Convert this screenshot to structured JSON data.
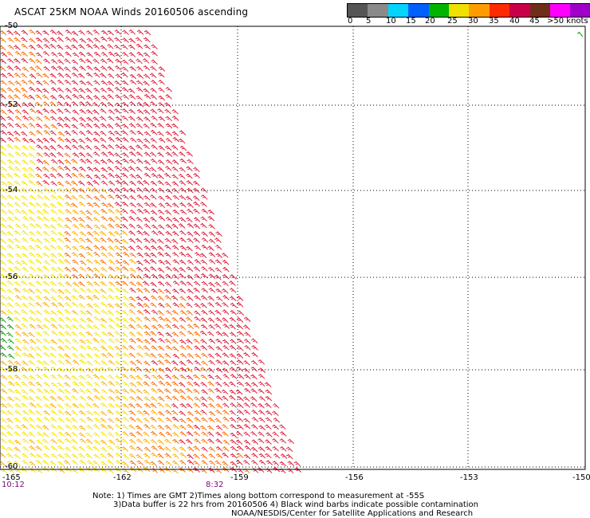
{
  "title": "ASCAT 25KM NOAA Winds 20160506 ascending",
  "legend": {
    "labels": [
      "0",
      "5",
      "10",
      "15",
      "20",
      "25",
      "30",
      "35",
      "40",
      "45",
      ">50 knots"
    ],
    "colors": [
      "#555555",
      "#8a8a8a",
      "#00d4ff",
      "#0060ff",
      "#00b400",
      "#f0e000",
      "#ff9c00",
      "#ff2a00",
      "#c8004a",
      "#6e2e1a",
      "#ff00ff",
      "#a000c8",
      "#400080"
    ]
  },
  "latitudes": [
    "-50",
    "-52",
    "-54",
    "-56",
    "-58",
    "-60"
  ],
  "longitudes": [
    "-165",
    "-162",
    "-159",
    "-156",
    "-153",
    "-150"
  ],
  "times": [
    "10:12",
    "8:32"
  ],
  "note": {
    "line1": "Note: 1) Times are GMT 2)Times along bottom correspond to measurement at -55S",
    "line2": "3)Data buffer is 22 hrs from 20160506 4) Black wind barbs indicate possible contamination",
    "line3": "NOAA/NESDIS/Center for Satellite Applications and Research"
  },
  "wind_colors": {
    "light": "#f6e600",
    "mid": "#ffb000",
    "orange": "#ff7000",
    "red": "#e0203c",
    "green": "#12a012",
    "blue": "#2060ff"
  }
}
